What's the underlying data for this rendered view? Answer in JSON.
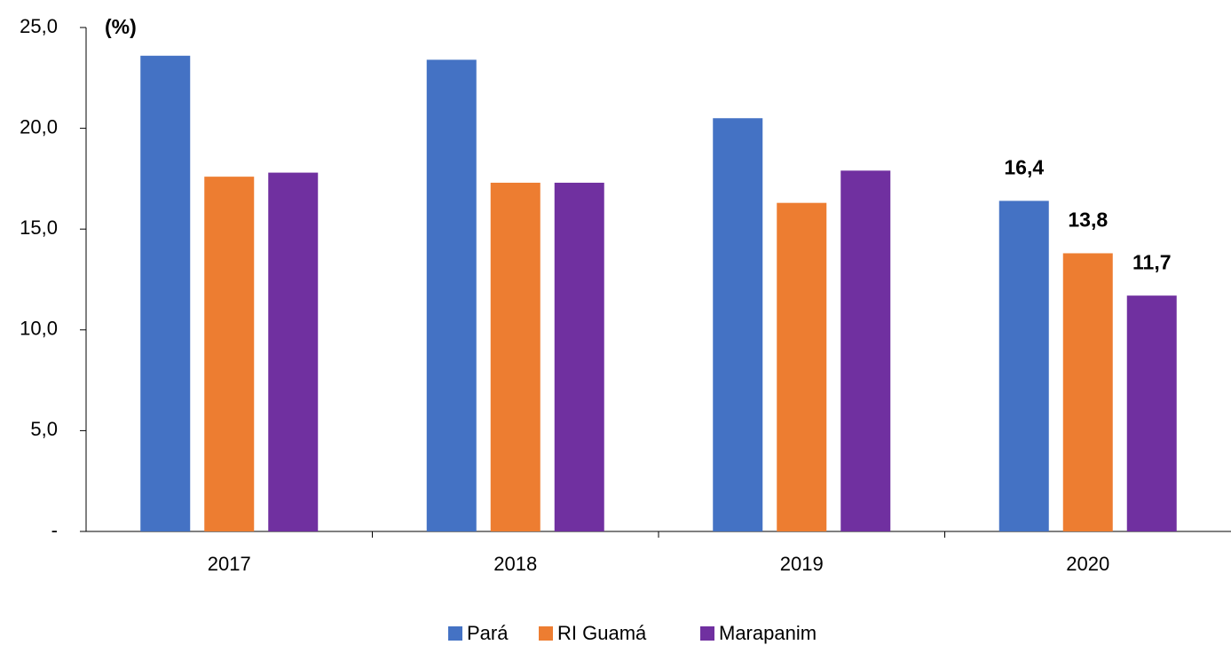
{
  "chart_data": {
    "type": "bar",
    "y_label": "(%)",
    "categories": [
      "2017",
      "2018",
      "2019",
      "2020"
    ],
    "series": [
      {
        "name": "Pará",
        "color": "#4472c4",
        "values": [
          23.6,
          23.4,
          20.5,
          16.4
        ],
        "value_labels": [
          null,
          null,
          null,
          "16,4"
        ]
      },
      {
        "name": "RI Guamá",
        "color": "#ed7d31",
        "values": [
          17.6,
          17.3,
          16.3,
          13.8
        ],
        "value_labels": [
          null,
          null,
          null,
          "13,8"
        ]
      },
      {
        "name": "Marapanim",
        "color": "#7030a0",
        "values": [
          17.8,
          17.3,
          17.9,
          11.7
        ],
        "value_labels": [
          null,
          null,
          null,
          "11,7"
        ]
      }
    ],
    "ylim": [
      0,
      25
    ],
    "yticks": [
      {
        "value": 0,
        "label": "-"
      },
      {
        "value": 5,
        "label": "5,0"
      },
      {
        "value": 10,
        "label": "10,0"
      },
      {
        "value": 15,
        "label": "15,0"
      },
      {
        "value": 20,
        "label": "20,0"
      },
      {
        "value": 25,
        "label": "25,0"
      }
    ],
    "legend": "bottom"
  }
}
